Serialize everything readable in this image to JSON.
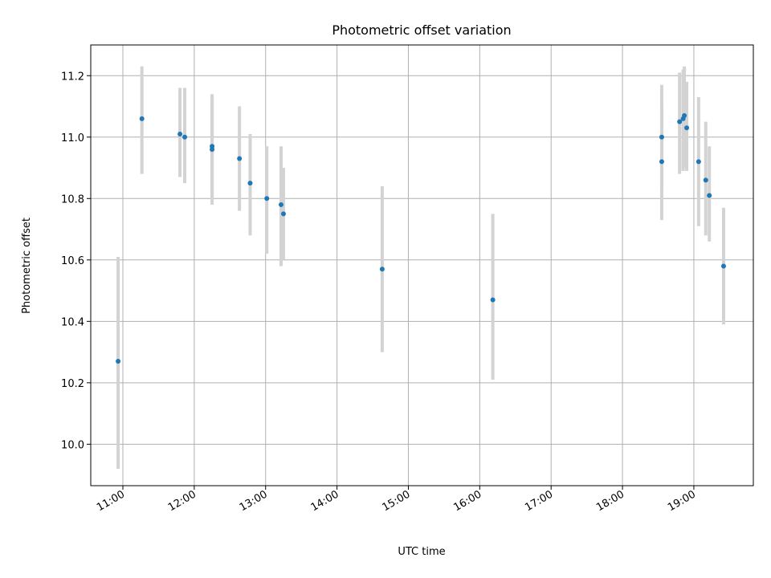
{
  "chart_data": {
    "type": "scatter",
    "title": "Photometric offset variation",
    "xlabel": "UTC time",
    "ylabel": "Photometric offset",
    "x_unit": "UTC time (HH:MM)",
    "xlim": [
      "10:33",
      "19:50"
    ],
    "ylim": [
      9.865,
      11.3
    ],
    "x_ticks": [
      "11:00",
      "12:00",
      "13:00",
      "14:00",
      "15:00",
      "16:00",
      "17:00",
      "18:00",
      "19:00"
    ],
    "y_ticks": [
      "10.0",
      "10.2",
      "10.4",
      "10.6",
      "10.8",
      "11.0",
      "11.2"
    ],
    "grid": true,
    "legend": "none",
    "marker_color": "#1f77b4",
    "errorbar_color": "#d3d3d3",
    "points": [
      {
        "t": "10:56",
        "y": 10.27,
        "ylo": 9.92,
        "yhi": 10.61
      },
      {
        "t": "11:16",
        "y": 11.06,
        "ylo": 10.88,
        "yhi": 11.23
      },
      {
        "t": "11:48",
        "y": 11.01,
        "ylo": 10.87,
        "yhi": 11.16
      },
      {
        "t": "11:52",
        "y": 11.0,
        "ylo": 10.85,
        "yhi": 11.16
      },
      {
        "t": "12:15",
        "y": 10.97,
        "ylo": 10.8,
        "yhi": 11.14
      },
      {
        "t": "12:15",
        "y": 10.96,
        "ylo": 10.78,
        "yhi": 11.13
      },
      {
        "t": "12:38",
        "y": 10.93,
        "ylo": 10.76,
        "yhi": 11.1
      },
      {
        "t": "12:47",
        "y": 10.85,
        "ylo": 10.68,
        "yhi": 11.01
      },
      {
        "t": "13:01",
        "y": 10.8,
        "ylo": 10.62,
        "yhi": 10.97
      },
      {
        "t": "13:13",
        "y": 10.78,
        "ylo": 10.58,
        "yhi": 10.97
      },
      {
        "t": "13:15",
        "y": 10.75,
        "ylo": 10.6,
        "yhi": 10.9
      },
      {
        "t": "14:38",
        "y": 10.57,
        "ylo": 10.3,
        "yhi": 10.84
      },
      {
        "t": "16:11",
        "y": 10.47,
        "ylo": 10.21,
        "yhi": 10.75
      },
      {
        "t": "18:33",
        "y": 10.92,
        "ylo": 10.73,
        "yhi": 11.1
      },
      {
        "t": "18:33",
        "y": 11.0,
        "ylo": 10.83,
        "yhi": 11.17
      },
      {
        "t": "18:48",
        "y": 11.05,
        "ylo": 10.88,
        "yhi": 11.21
      },
      {
        "t": "18:51",
        "y": 11.06,
        "ylo": 10.89,
        "yhi": 11.22
      },
      {
        "t": "18:52",
        "y": 11.07,
        "ylo": 10.9,
        "yhi": 11.23
      },
      {
        "t": "18:54",
        "y": 11.03,
        "ylo": 10.89,
        "yhi": 11.18
      },
      {
        "t": "19:04",
        "y": 10.92,
        "ylo": 10.71,
        "yhi": 11.13
      },
      {
        "t": "19:10",
        "y": 10.86,
        "ylo": 10.68,
        "yhi": 11.05
      },
      {
        "t": "19:13",
        "y": 10.81,
        "ylo": 10.66,
        "yhi": 10.97
      },
      {
        "t": "19:25",
        "y": 10.58,
        "ylo": 10.39,
        "yhi": 10.77
      }
    ]
  }
}
